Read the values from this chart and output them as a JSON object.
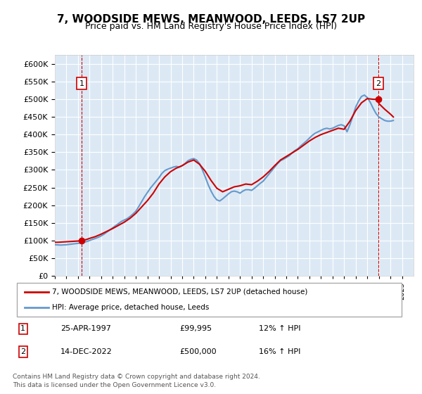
{
  "title": "7, WOODSIDE MEWS, MEANWOOD, LEEDS, LS7 2UP",
  "subtitle": "Price paid vs. HM Land Registry's House Price Index (HPI)",
  "background_color": "#dce9f5",
  "plot_bg_color": "#dce9f5",
  "ylim": [
    0,
    625000
  ],
  "xlim_start": 1995.0,
  "xlim_end": 2026.0,
  "sale1_x": 1997.32,
  "sale1_y": 99995,
  "sale2_x": 2022.95,
  "sale2_y": 500000,
  "legend_line1": "7, WOODSIDE MEWS, MEANWOOD, LEEDS, LS7 2UP (detached house)",
  "legend_line2": "HPI: Average price, detached house, Leeds",
  "annotation1_date": "25-APR-1997",
  "annotation1_price": "£99,995",
  "annotation1_hpi": "12% ↑ HPI",
  "annotation2_date": "14-DEC-2022",
  "annotation2_price": "£500,000",
  "annotation2_hpi": "16% ↑ HPI",
  "footer": "Contains HM Land Registry data © Crown copyright and database right 2024.\nThis data is licensed under the Open Government Licence v3.0.",
  "red_color": "#cc0000",
  "blue_color": "#6699cc",
  "hpi_data_x": [
    1995.0,
    1995.25,
    1995.5,
    1995.75,
    1996.0,
    1996.25,
    1996.5,
    1996.75,
    1997.0,
    1997.25,
    1997.5,
    1997.75,
    1998.0,
    1998.25,
    1998.5,
    1998.75,
    1999.0,
    1999.25,
    1999.5,
    1999.75,
    2000.0,
    2000.25,
    2000.5,
    2000.75,
    2001.0,
    2001.25,
    2001.5,
    2001.75,
    2002.0,
    2002.25,
    2002.5,
    2002.75,
    2003.0,
    2003.25,
    2003.5,
    2003.75,
    2004.0,
    2004.25,
    2004.5,
    2004.75,
    2005.0,
    2005.25,
    2005.5,
    2005.75,
    2006.0,
    2006.25,
    2006.5,
    2006.75,
    2007.0,
    2007.25,
    2007.5,
    2007.75,
    2008.0,
    2008.25,
    2008.5,
    2008.75,
    2009.0,
    2009.25,
    2009.5,
    2009.75,
    2010.0,
    2010.25,
    2010.5,
    2010.75,
    2011.0,
    2011.25,
    2011.5,
    2011.75,
    2012.0,
    2012.25,
    2012.5,
    2012.75,
    2013.0,
    2013.25,
    2013.5,
    2013.75,
    2014.0,
    2014.25,
    2014.5,
    2014.75,
    2015.0,
    2015.25,
    2015.5,
    2015.75,
    2016.0,
    2016.25,
    2016.5,
    2016.75,
    2017.0,
    2017.25,
    2017.5,
    2017.75,
    2018.0,
    2018.25,
    2018.5,
    2018.75,
    2019.0,
    2019.25,
    2019.5,
    2019.75,
    2020.0,
    2020.25,
    2020.5,
    2020.75,
    2021.0,
    2021.25,
    2021.5,
    2021.75,
    2022.0,
    2022.25,
    2022.5,
    2022.75,
    2023.0,
    2023.25,
    2023.5,
    2023.75,
    2024.0,
    2024.25
  ],
  "hpi_data_y": [
    88000,
    87500,
    87000,
    87500,
    88000,
    89000,
    90000,
    91000,
    92000,
    93000,
    95000,
    97000,
    100000,
    103000,
    106000,
    109000,
    113000,
    118000,
    124000,
    130000,
    136000,
    142000,
    148000,
    154000,
    158000,
    162000,
    168000,
    175000,
    183000,
    196000,
    210000,
    224000,
    236000,
    248000,
    258000,
    268000,
    278000,
    290000,
    298000,
    302000,
    305000,
    308000,
    310000,
    308000,
    312000,
    318000,
    326000,
    330000,
    332000,
    328000,
    318000,
    300000,
    280000,
    258000,
    240000,
    225000,
    215000,
    212000,
    218000,
    225000,
    232000,
    238000,
    240000,
    238000,
    234000,
    240000,
    244000,
    244000,
    242000,
    248000,
    255000,
    262000,
    268000,
    278000,
    288000,
    298000,
    308000,
    318000,
    326000,
    330000,
    335000,
    340000,
    348000,
    355000,
    360000,
    368000,
    375000,
    382000,
    390000,
    398000,
    404000,
    408000,
    412000,
    416000,
    418000,
    416000,
    418000,
    422000,
    426000,
    428000,
    425000,
    408000,
    428000,
    452000,
    478000,
    495000,
    508000,
    512000,
    505000,
    492000,
    475000,
    460000,
    450000,
    445000,
    440000,
    438000,
    438000,
    440000
  ],
  "price_data_x": [
    1995.0,
    1995.25,
    1995.5,
    1995.75,
    1996.0,
    1996.25,
    1996.5,
    1996.75,
    1997.0,
    1997.32,
    1997.5,
    1997.75,
    1998.0,
    1998.5,
    1999.0,
    1999.5,
    2000.0,
    2000.5,
    2001.0,
    2001.5,
    2002.0,
    2002.5,
    2003.0,
    2003.5,
    2004.0,
    2004.5,
    2005.0,
    2005.5,
    2006.0,
    2006.5,
    2007.0,
    2007.5,
    2008.0,
    2008.5,
    2009.0,
    2009.5,
    2010.0,
    2010.5,
    2011.0,
    2011.5,
    2012.0,
    2012.5,
    2013.0,
    2013.5,
    2014.0,
    2014.5,
    2015.0,
    2015.5,
    2016.0,
    2016.5,
    2017.0,
    2017.5,
    2018.0,
    2018.5,
    2019.0,
    2019.5,
    2020.0,
    2020.5,
    2021.0,
    2021.5,
    2022.0,
    2022.5,
    2022.95,
    2023.0,
    2023.5,
    2024.0,
    2024.25
  ],
  "price_data_y": [
    95000,
    95000,
    95500,
    96000,
    96500,
    97000,
    97500,
    98000,
    98500,
    99995,
    101000,
    103000,
    106000,
    111000,
    118000,
    126000,
    134000,
    143000,
    152000,
    163000,
    177000,
    195000,
    213000,
    234000,
    260000,
    280000,
    295000,
    305000,
    312000,
    322000,
    328000,
    316000,
    296000,
    270000,
    248000,
    238000,
    245000,
    252000,
    255000,
    260000,
    258000,
    268000,
    280000,
    295000,
    312000,
    328000,
    338000,
    348000,
    358000,
    370000,
    382000,
    392000,
    400000,
    406000,
    412000,
    418000,
    415000,
    438000,
    468000,
    490000,
    502000,
    500000,
    500000,
    488000,
    472000,
    458000,
    450000
  ]
}
